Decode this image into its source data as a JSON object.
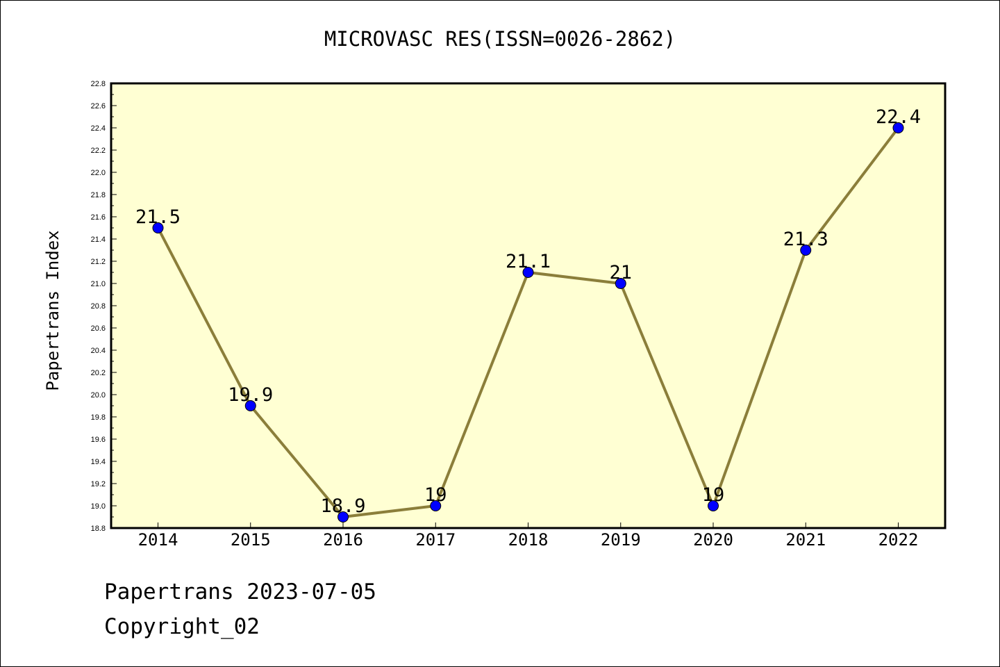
{
  "chart_data": {
    "type": "line",
    "title": "MICROVASC RES(ISSN=0026-2862)",
    "ylabel": "Papertrans Index",
    "xlabel": "",
    "categories": [
      "2014",
      "2015",
      "2016",
      "2017",
      "2018",
      "2019",
      "2020",
      "2021",
      "2022"
    ],
    "values": [
      21.5,
      19.9,
      18.9,
      19,
      21.1,
      21,
      19,
      21.3,
      22.4
    ],
    "data_labels": [
      "21.5",
      "19.9",
      "18.9",
      "19",
      "21.1",
      "21",
      "19",
      "21.3",
      "22.4"
    ],
    "ylim": [
      18.8,
      22.8
    ],
    "yticks": [
      "18.8",
      "19.0",
      "19.2",
      "19.4",
      "19.6",
      "19.8",
      "20.0",
      "20.2",
      "20.4",
      "20.6",
      "20.8",
      "21.0",
      "21.2",
      "21.4",
      "21.6",
      "21.8",
      "22.0",
      "22.2",
      "22.4",
      "22.6",
      "22.8"
    ],
    "grid": false,
    "colors": {
      "plot_background": "#ffffd3",
      "line": "#8b7e3a",
      "marker": "#0000ff"
    }
  },
  "footer": {
    "line1": "Papertrans 2023-07-05",
    "line2": "Copyright_02"
  }
}
